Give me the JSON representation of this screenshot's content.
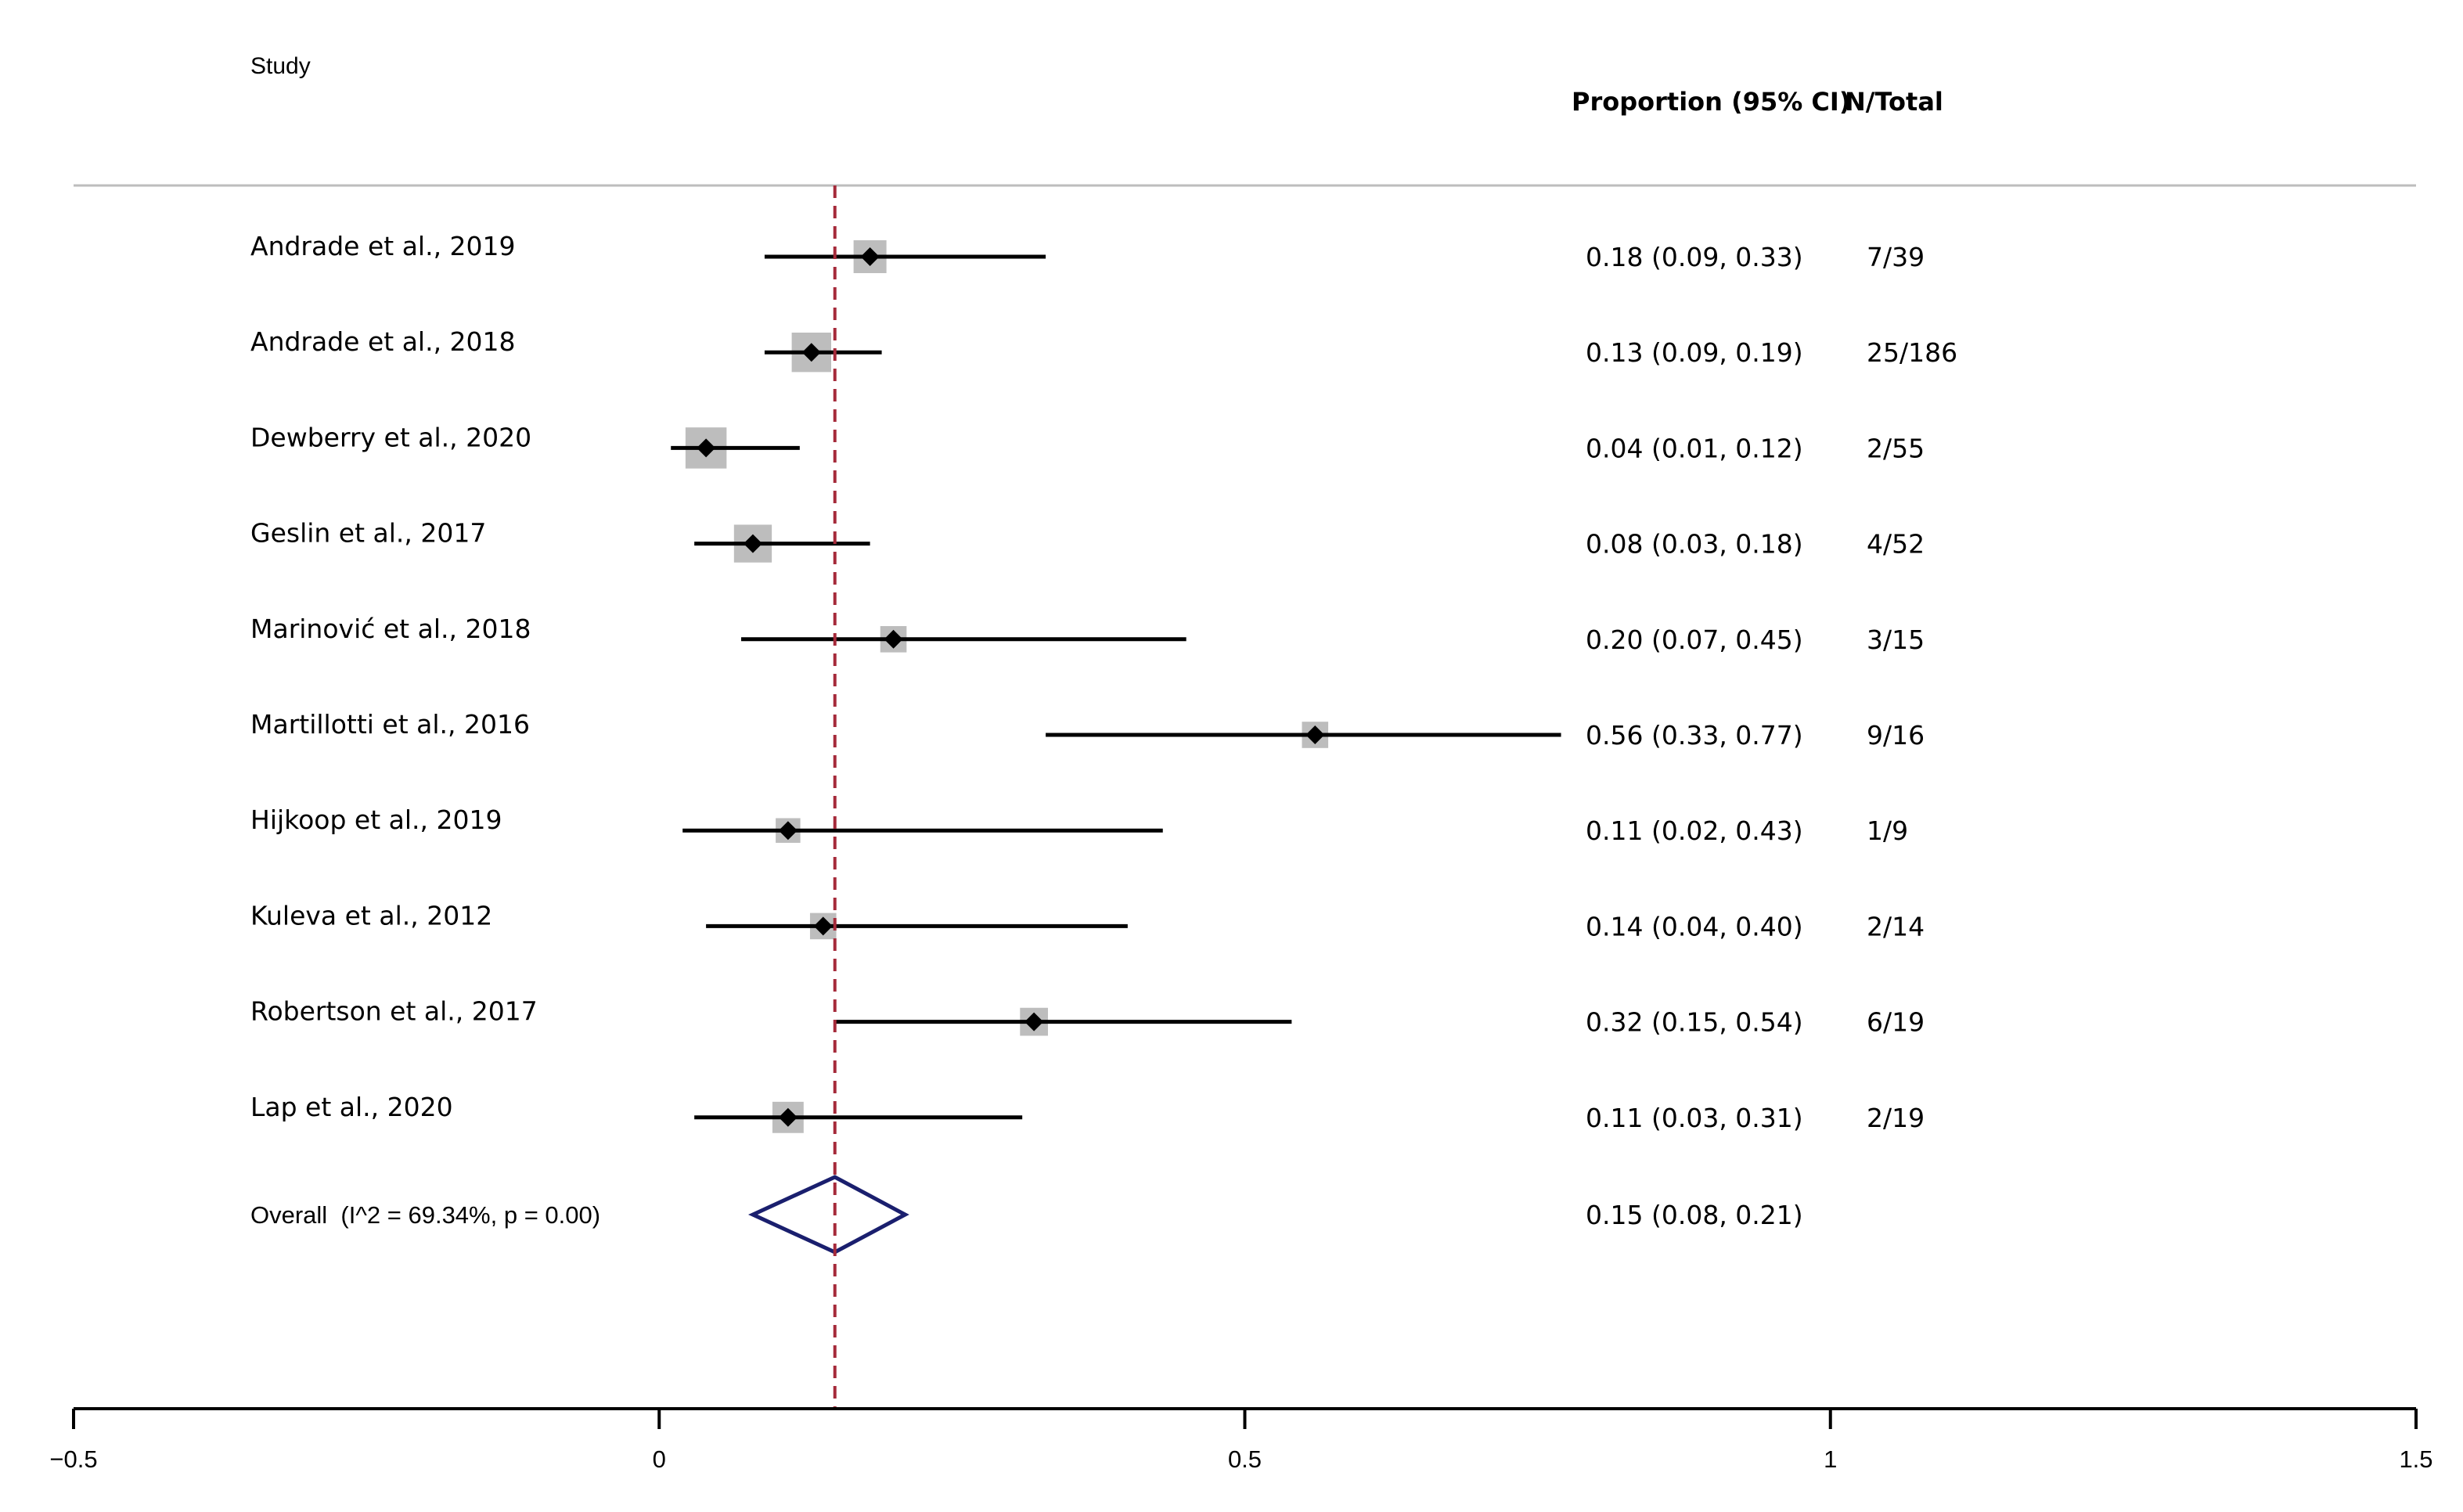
{
  "chart_data": {
    "type": "forest",
    "headers": {
      "study": "Study",
      "proportion": "Proportion (95% CI)",
      "n_total": "N/Total"
    },
    "studies": [
      {
        "name": "Andrade et al., 2019",
        "est": 0.18,
        "lo": 0.09,
        "hi": 0.33,
        "ci_text": "0.18 (0.09, 0.33)",
        "n_total": "7/39",
        "weight_box": 1.0
      },
      {
        "name": "Andrade et al., 2018",
        "est": 0.13,
        "lo": 0.09,
        "hi": 0.19,
        "ci_text": "0.13 (0.09, 0.19)",
        "n_total": "25/186",
        "weight_box": 1.2
      },
      {
        "name": "Dewberry et al., 2020",
        "est": 0.04,
        "lo": 0.01,
        "hi": 0.12,
        "ci_text": "0.04 (0.01, 0.12)",
        "n_total": "2/55",
        "weight_box": 1.25
      },
      {
        "name": "Geslin et al., 2017",
        "est": 0.08,
        "lo": 0.03,
        "hi": 0.18,
        "ci_text": "0.08 (0.03, 0.18)",
        "n_total": "4/52",
        "weight_box": 1.15
      },
      {
        "name": "Marinović et al., 2018",
        "est": 0.2,
        "lo": 0.07,
        "hi": 0.45,
        "ci_text": "0.20 (0.07, 0.45)",
        "n_total": "3/15",
        "weight_box": 0.8
      },
      {
        "name": "Martillotti et al., 2016",
        "est": 0.56,
        "lo": 0.33,
        "hi": 0.77,
        "ci_text": "0.56 (0.33, 0.77)",
        "n_total": "9/16",
        "weight_box": 0.8
      },
      {
        "name": "Hijkoop et al., 2019",
        "est": 0.11,
        "lo": 0.02,
        "hi": 0.43,
        "ci_text": "0.11 (0.02, 0.43)",
        "n_total": "1/9",
        "weight_box": 0.75
      },
      {
        "name": "Kuleva et al., 2012",
        "est": 0.14,
        "lo": 0.04,
        "hi": 0.4,
        "ci_text": "0.14 (0.04, 0.40)",
        "n_total": "2/14",
        "weight_box": 0.8
      },
      {
        "name": "Robertson et al., 2017",
        "est": 0.32,
        "lo": 0.15,
        "hi": 0.54,
        "ci_text": "0.32 (0.15, 0.54)",
        "n_total": "6/19",
        "weight_box": 0.85
      },
      {
        "name": "Lap et al., 2020",
        "est": 0.11,
        "lo": 0.03,
        "hi": 0.31,
        "ci_text": "0.11 (0.03, 0.31)",
        "n_total": "2/19",
        "weight_box": 0.95
      }
    ],
    "overall": {
      "label": "Overall  (I^2 = 69.34%, p = 0.00)",
      "est": 0.15,
      "lo": 0.08,
      "hi": 0.21,
      "ci_text": "0.15 (0.08, 0.21)"
    },
    "reference_line": 0.15,
    "xlim": [
      -0.5,
      1.5
    ],
    "x_ticks": [
      -0.5,
      0,
      0.5,
      1,
      1.5
    ],
    "x_tick_labels": [
      "−0.5",
      "0",
      "0.5",
      "1",
      "1.5"
    ],
    "colors": {
      "reference_line": "#a52a3a",
      "overall_diamond": "#1a1f6e",
      "weight_box": "#bdbdbd",
      "point": "#000000",
      "rule": "#bdbdbd"
    }
  }
}
